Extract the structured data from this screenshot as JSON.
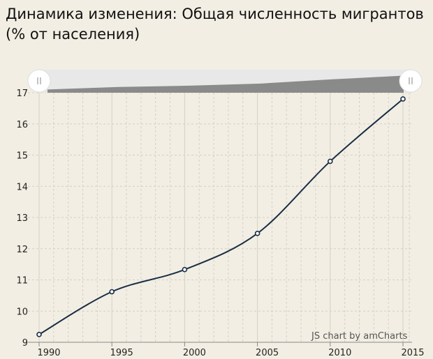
{
  "title": "Динамика изменения: Общая численность мигрантов (% от населения)",
  "credit": "JS chart by amCharts",
  "colors": {
    "background": "#f2eee3",
    "line": "#1a2f45",
    "scrollbar_track": "#e8e8e8",
    "scrollbar_fill": "#8a8a8a",
    "grid": "#d4d0c4"
  },
  "scrollbar": {
    "left_handle_icon": "grip-lines-icon",
    "right_handle_icon": "grip-lines-icon"
  },
  "chart_data": {
    "type": "line",
    "title": "Динамика изменения: Общая численность мигрантов (% от населения)",
    "xlabel": "",
    "ylabel": "",
    "x": [
      1990,
      1995,
      2000,
      2005,
      2010,
      2015
    ],
    "series": [
      {
        "values": [
          9.25,
          10.62,
          11.33,
          12.49,
          14.8,
          16.8
        ]
      }
    ],
    "xlim": [
      1990,
      2015
    ],
    "ylim": [
      9,
      17
    ],
    "x_ticks": [
      "1990",
      "1995",
      "2000",
      "2005",
      "2010",
      "2015"
    ],
    "y_ticks": [
      "9",
      "10",
      "11",
      "12",
      "13",
      "14",
      "15",
      "16",
      "17"
    ],
    "grid": true,
    "smoothed": true,
    "scrollbar": true
  }
}
